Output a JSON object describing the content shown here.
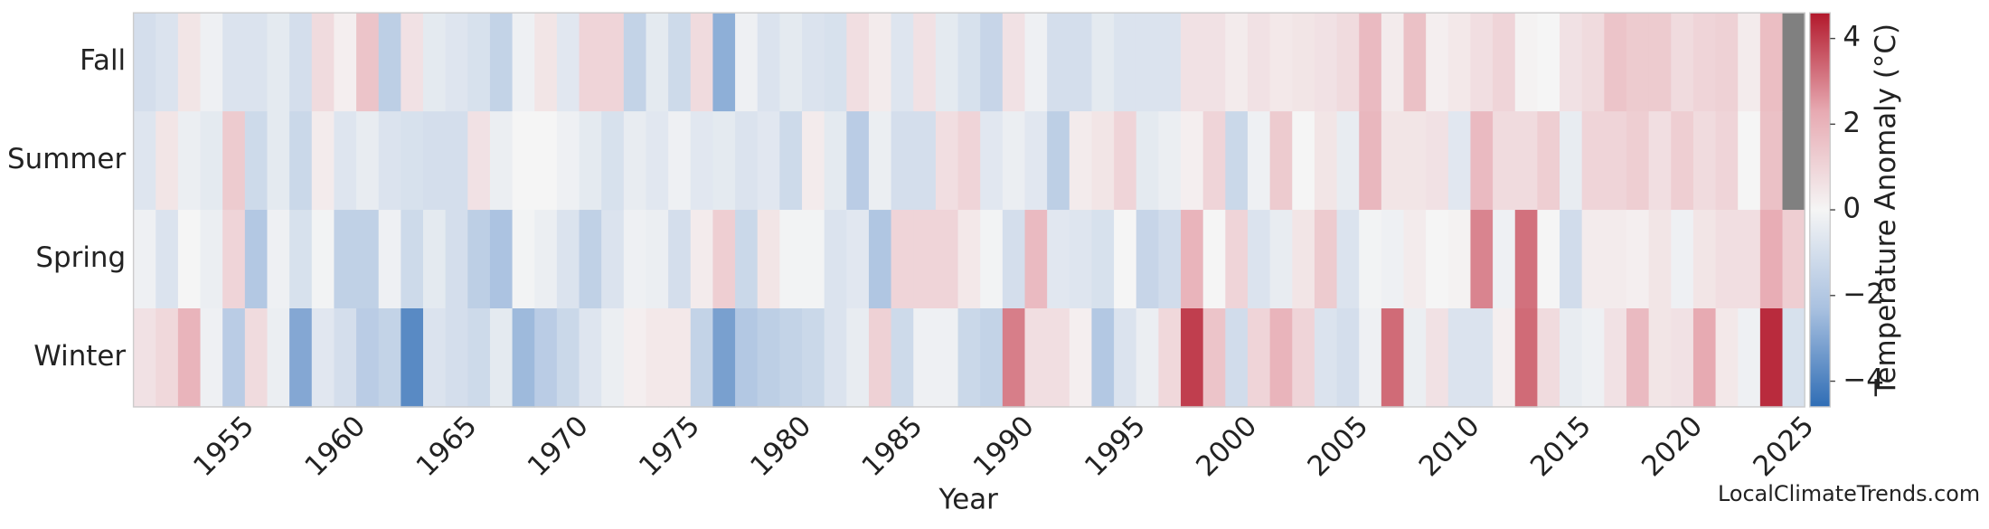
{
  "chart_data": {
    "type": "heatmap",
    "x_label": "Year",
    "colorbar_label": "Temperature Anomaly (°C)",
    "watermark": "LocalClimateTrends.com",
    "x": [
      1950,
      1951,
      1952,
      1953,
      1954,
      1955,
      1956,
      1957,
      1958,
      1959,
      1960,
      1961,
      1962,
      1963,
      1964,
      1965,
      1966,
      1967,
      1968,
      1969,
      1970,
      1971,
      1972,
      1973,
      1974,
      1975,
      1976,
      1977,
      1978,
      1979,
      1980,
      1981,
      1982,
      1983,
      1984,
      1985,
      1986,
      1987,
      1988,
      1989,
      1990,
      1991,
      1992,
      1993,
      1994,
      1995,
      1996,
      1997,
      1998,
      1999,
      2000,
      2001,
      2002,
      2003,
      2004,
      2005,
      2006,
      2007,
      2008,
      2009,
      2010,
      2011,
      2012,
      2013,
      2014,
      2015,
      2016,
      2017,
      2018,
      2019,
      2020,
      2021,
      2022,
      2023,
      2024
    ],
    "xlim": [
      1950,
      2025
    ],
    "xticks": [
      1955,
      1960,
      1965,
      1970,
      1975,
      1980,
      1985,
      1990,
      1995,
      2000,
      2005,
      2010,
      2015,
      2020,
      2025
    ],
    "series": [
      {
        "name": "Fall",
        "values": [
          -1,
          -0.8,
          0.5,
          -0.2,
          -0.8,
          -0.8,
          -0.5,
          -1,
          0.8,
          0.2,
          1.5,
          -1.7,
          0.6,
          -0.5,
          -0.7,
          -0.9,
          -1.5,
          -0.2,
          0.5,
          -0.6,
          1,
          1,
          -1.5,
          -0.5,
          -1.2,
          0.8,
          -2.8,
          -0.2,
          -0.8,
          -0.5,
          -0.8,
          -0.9,
          0.7,
          0.3,
          -0.7,
          0.6,
          -0.5,
          -0.9,
          -1.4,
          0.6,
          -0.2,
          -1,
          -1,
          -0.5,
          -0.8,
          -0.8,
          -0.8,
          0.6,
          0.6,
          0.3,
          0.6,
          0.4,
          0.5,
          0.6,
          0.8,
          1.8,
          0.3,
          1.6,
          0.2,
          0.4,
          0.7,
          1,
          0.1,
          0,
          0.6,
          0.8,
          1.5,
          1.3,
          1.3,
          0.8,
          1,
          1.1,
          0.3,
          1.7,
          null
        ]
      },
      {
        "name": "Summer",
        "values": [
          -0.7,
          0.5,
          -0.3,
          -0.5,
          1.3,
          -1.2,
          -0.5,
          -1.3,
          0.3,
          -0.7,
          -0.4,
          -0.8,
          -0.9,
          -1,
          -1,
          0.6,
          -0.3,
          0,
          0,
          -0.2,
          -0.5,
          -0.9,
          -0.4,
          -0.6,
          -0.2,
          -0.6,
          -0.5,
          -0.8,
          -0.6,
          -1.2,
          0.3,
          -0.5,
          -1.8,
          -0.3,
          -1,
          -1,
          0.7,
          1,
          -0.6,
          -0.3,
          -0.6,
          -1.7,
          0.3,
          0.5,
          1,
          -0.5,
          -0.3,
          0.2,
          1,
          -1.3,
          -0.2,
          1.3,
          0,
          0.5,
          -0.4,
          1.9,
          0.5,
          0.5,
          0.6,
          -0.6,
          1.8,
          0.8,
          0.8,
          1.2,
          -0.4,
          1,
          1,
          1.2,
          0.7,
          1.2,
          0.8,
          1,
          0,
          1.6,
          null
        ]
      },
      {
        "name": "Spring",
        "values": [
          -0.2,
          -0.8,
          0,
          -0.3,
          1,
          -2,
          -0.2,
          -0.9,
          -0.1,
          -1.6,
          -1.6,
          -0.2,
          -1.2,
          -0.5,
          -1,
          -1.7,
          -2.2,
          -0.1,
          -0.3,
          -0.8,
          -1.6,
          -0.8,
          -0.2,
          -0.3,
          -1,
          0.3,
          1.2,
          -1.3,
          0.5,
          -0.1,
          -0.1,
          -0.8,
          -0.6,
          -2.1,
          1,
          1,
          1,
          0.4,
          -0.1,
          -1,
          1.8,
          -0.6,
          -0.7,
          -0.9,
          0,
          -1.4,
          -1.1,
          2,
          0,
          1,
          -0.8,
          -0.4,
          0.5,
          1.3,
          -0.8,
          -0.1,
          -0.2,
          0.3,
          0,
          0.1,
          2.9,
          -0.2,
          3.2,
          0,
          -1.1,
          0.3,
          0.3,
          0.2,
          0.5,
          -0.2,
          0.5,
          0.7,
          0.7,
          2.2,
          1.2
        ]
      },
      {
        "name": "Winter",
        "values": [
          0.6,
          0.9,
          2,
          -0.2,
          -1.8,
          0.8,
          -0.3,
          -3,
          -0.6,
          -1,
          -1.8,
          -1.5,
          -3.8,
          -0.8,
          -1,
          -1.2,
          -0.5,
          -2.5,
          -1.8,
          -1.3,
          -0.7,
          -0.3,
          0.2,
          0.4,
          0.4,
          -1.5,
          -3.2,
          -2,
          -1.7,
          -1.5,
          -1.3,
          -0.8,
          -0.4,
          1.1,
          -1.2,
          -0.2,
          -0.2,
          -1.3,
          -1.5,
          3,
          0.7,
          0.7,
          0.2,
          -2,
          -0.8,
          -0.3,
          0.9,
          4,
          1.5,
          -1.1,
          1,
          2,
          1,
          -0.8,
          -1,
          -0.2,
          3.3,
          -0.3,
          0.6,
          -0.8,
          -0.8,
          0.2,
          3.3,
          0.8,
          -0.4,
          -0.2,
          0.6,
          1.8,
          0.5,
          0.6,
          2.3,
          0.4,
          -0.2,
          4.3,
          -0.9
        ]
      }
    ],
    "zlim": [
      -4.6,
      4.6
    ],
    "zticks": [
      {
        "value": -4,
        "label": "−4"
      },
      {
        "value": -2,
        "label": "−2"
      },
      0,
      2,
      4
    ],
    "colorscale": [
      "#2f6db5",
      "#a9c1e0",
      "#f5f5f5",
      "#e7aab2",
      "#b2182b"
    ],
    "missing_color": "#808080"
  }
}
